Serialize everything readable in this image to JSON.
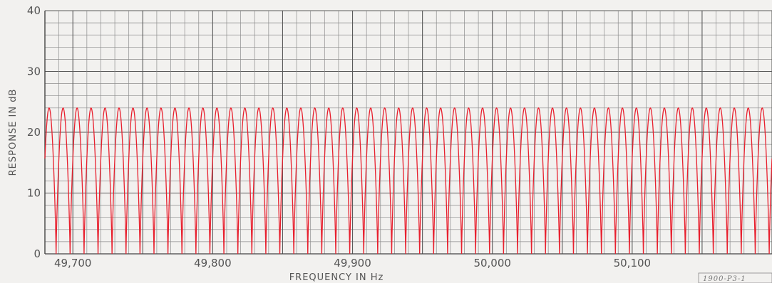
{
  "chart_data": {
    "type": "line",
    "title": "",
    "xlabel": "FREQUENCY IN Hz",
    "ylabel": "RESPONSE IN dB",
    "xlim": [
      49680,
      50200
    ],
    "ylim": [
      0,
      40
    ],
    "x_ticks": [
      49700,
      49800,
      49900,
      50000,
      50100
    ],
    "x_tick_labels": [
      "49,700",
      "49,800",
      "49,900",
      "50,000",
      "50,100"
    ],
    "y_ticks": [
      0,
      10,
      20,
      30,
      40
    ],
    "y_tick_labels": [
      "0",
      "10",
      "20",
      "30",
      "40"
    ],
    "grid": true,
    "series": [
      {
        "style": "periodic comb response",
        "color": "#e8202e",
        "peak_db": 24,
        "min_db": 0,
        "period_hz": 10,
        "first_peak_hz": 49683,
        "peak_frequencies_hz": [
          49683,
          49693,
          49703,
          49713,
          49723,
          49733,
          49743,
          49753,
          49763,
          49773,
          49783,
          49793,
          49803,
          49813,
          49823,
          49833,
          49843,
          49853,
          49863,
          49873,
          49883,
          49893,
          49903,
          49913,
          49923,
          49933,
          49943,
          49953,
          49963,
          49973,
          49983,
          49993,
          50003,
          50013,
          50023,
          50033,
          50043,
          50053,
          50063,
          50073,
          50083,
          50093,
          50103,
          50113,
          50123,
          50133,
          50143,
          50153,
          50163,
          50173,
          50183,
          50193
        ]
      }
    ]
  },
  "figure_id": "1900-P3-1",
  "colors": {
    "background": "#f2f1ef",
    "grid": "#8c8c8c",
    "grid_major": "#5a5a5a",
    "curve": "#e8202e"
  }
}
